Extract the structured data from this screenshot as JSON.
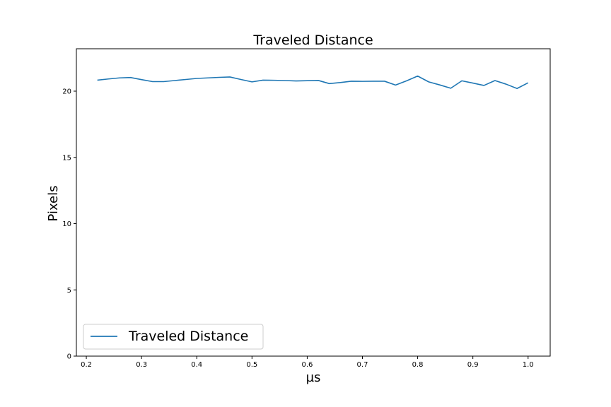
{
  "chart_data": {
    "type": "line",
    "title": "Traveled Distance",
    "xlabel": "µs",
    "ylabel": "Pixels",
    "xlim": [
      0.182,
      1.04
    ],
    "ylim": [
      0,
      23.2
    ],
    "xticks": [
      0.2,
      0.3,
      0.4,
      0.5,
      0.6,
      0.7,
      0.8,
      0.9,
      1.0
    ],
    "xtick_labels": [
      "0.2",
      "0.3",
      "0.4",
      "0.5",
      "0.6",
      "0.7",
      "0.8",
      "0.9",
      "1.0"
    ],
    "yticks": [
      0,
      5,
      10,
      15,
      20
    ],
    "ytick_labels": [
      "0",
      "5",
      "10",
      "15",
      "20"
    ],
    "grid": false,
    "legend_position": "lower-left",
    "series": [
      {
        "name": "Traveled Distance",
        "color": "#1f77b4",
        "x": [
          0.22,
          0.24,
          0.26,
          0.28,
          0.3,
          0.32,
          0.34,
          0.36,
          0.38,
          0.4,
          0.42,
          0.44,
          0.46,
          0.48,
          0.5,
          0.52,
          0.54,
          0.56,
          0.58,
          0.6,
          0.62,
          0.64,
          0.66,
          0.68,
          0.7,
          0.72,
          0.74,
          0.76,
          0.78,
          0.8,
          0.82,
          0.84,
          0.86,
          0.88,
          0.9,
          0.92,
          0.94,
          0.96,
          0.98,
          1.0
        ],
        "y": [
          20.83,
          20.92,
          21.0,
          21.03,
          20.87,
          20.72,
          20.72,
          20.8,
          20.88,
          20.96,
          21.0,
          21.04,
          21.07,
          20.88,
          20.7,
          20.83,
          20.82,
          20.8,
          20.77,
          20.79,
          20.81,
          20.57,
          20.65,
          20.75,
          20.74,
          20.75,
          20.75,
          20.46,
          20.78,
          21.14,
          20.7,
          20.47,
          20.22,
          20.78,
          20.61,
          20.43,
          20.8,
          20.53,
          20.2,
          20.63
        ]
      }
    ]
  }
}
